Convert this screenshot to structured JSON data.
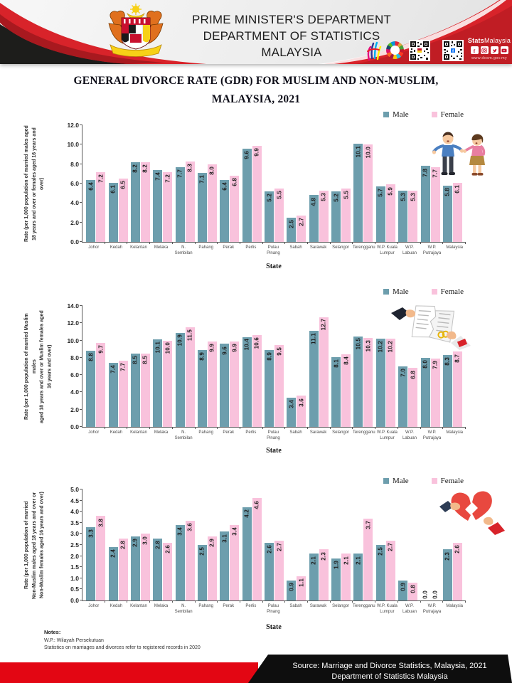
{
  "header": {
    "dept_line1": "PRIME MINISTER'S DEPARTMENT",
    "dept_line2": "DEPARTMENT OF STATISTICS MALAYSIA",
    "brand": {
      "bold": "Stats",
      "light": "Malaysia",
      "website": "www.dosm.gov.my"
    },
    "social_icons": [
      "facebook-icon",
      "instagram-icon",
      "twitter-icon",
      "youtube-icon"
    ],
    "logo_icons": [
      "malaysia-coat-of-arms",
      "dosm-hand-logo",
      "sdg-wheel-logo",
      "qr-code-dosm",
      "qr-code-facebook"
    ]
  },
  "title": {
    "line1": "GENERAL DIVORCE RATE (GDR) FOR MUSLIM AND NON-MUSLIM,",
    "line2": "MALAYSIA, 2021"
  },
  "legend": {
    "male": "Male",
    "female": "Female"
  },
  "colors": {
    "male_bar": "#6D9EAD",
    "female_bar": "#F9C2DC",
    "header_red": "#D8232A",
    "footer_red": "#E30613",
    "footer_black": "#0E0E0E"
  },
  "chart_data": [
    {
      "type": "bar",
      "title": "GDR total population",
      "xlabel": "State",
      "ylabel": "Rate (per 1,000 population of married males aged\n18 years and over or females aged 16 years and over)",
      "ylim": [
        0,
        12
      ],
      "ystep": 2,
      "grid": false,
      "legend_position": "top-right",
      "categories": [
        "Johor",
        "Kedah",
        "Kelantan",
        "Melaka",
        "N. Sembilan",
        "Pahang",
        "Perak",
        "Perlis",
        "Pulau Pinang",
        "Sabah",
        "Sarawak",
        "Selangor",
        "Terengganu",
        "W.P. Kuala Lumpur",
        "W.P. Labuan",
        "W.P. Putrajaya",
        "Malaysia"
      ],
      "series": [
        {
          "name": "Male",
          "values": [
            6.4,
            6.1,
            8.2,
            7.4,
            7.7,
            7.1,
            6.4,
            9.6,
            5.2,
            2.5,
            4.8,
            5.2,
            10.1,
            5.7,
            5.3,
            7.8,
            5.8
          ]
        },
        {
          "name": "Female",
          "values": [
            7.2,
            6.5,
            8.2,
            7.2,
            8.3,
            8.0,
            6.8,
            9.9,
            5.5,
            2.7,
            5.3,
            5.5,
            10.0,
            5.9,
            5.3,
            7.7,
            6.1
          ]
        }
      ]
    },
    {
      "type": "bar",
      "title": "GDR Muslim",
      "xlabel": "State",
      "ylabel": "Rate (per 1,000 population of married Muslim males\naged 18 years and over or Muslim females aged\n16 years and over)",
      "ylim": [
        0,
        14
      ],
      "ystep": 2,
      "grid": false,
      "legend_position": "top-right",
      "categories": [
        "Johor",
        "Kedah",
        "Kelantan",
        "Melaka",
        "N. Sembilan",
        "Pahang",
        "Perak",
        "Perlis",
        "Pulau Pinang",
        "Sabah",
        "Sarawak",
        "Selangor",
        "Terengganu",
        "W.P. Kuala Lumpur",
        "W.P. Labuan",
        "W.P. Putrajaya",
        "Malaysia"
      ],
      "series": [
        {
          "name": "Male",
          "values": [
            8.8,
            7.4,
            8.5,
            10.1,
            10.9,
            8.9,
            9.6,
            10.4,
            8.9,
            3.4,
            11.1,
            8.1,
            10.5,
            10.2,
            7.0,
            8.0,
            8.3
          ]
        },
        {
          "name": "Female",
          "values": [
            9.7,
            7.7,
            8.5,
            10.0,
            11.5,
            9.9,
            9.9,
            10.6,
            9.5,
            3.6,
            12.7,
            8.4,
            10.3,
            10.2,
            6.8,
            7.9,
            8.7
          ]
        }
      ]
    },
    {
      "type": "bar",
      "title": "GDR Non-Muslim",
      "xlabel": "State",
      "ylabel": "Rate (per 1,000 population of married\nNon-Muslim males aged 18 years and over or\nNon-Muslim females aged 16 years and over)",
      "ylim": [
        0,
        5
      ],
      "ystep": 0.5,
      "grid": false,
      "legend_position": "top-right",
      "categories": [
        "Johor",
        "Kedah",
        "Kelantan",
        "Melaka",
        "N. Sembilan",
        "Pahang",
        "Perak",
        "Perlis",
        "Pulau Pinang",
        "Sabah",
        "Sarawak",
        "Selangor",
        "Terengganu",
        "W.P. Kuala Lumpur",
        "W.P. Labuan",
        "W.P. Putrajaya",
        "Malaysia"
      ],
      "series": [
        {
          "name": "Male",
          "values": [
            3.3,
            2.4,
            2.9,
            2.8,
            3.4,
            2.5,
            3.1,
            4.2,
            2.6,
            0.9,
            2.1,
            1.9,
            2.1,
            2.5,
            0.9,
            0.0,
            2.3
          ]
        },
        {
          "name": "Female",
          "values": [
            3.8,
            2.8,
            3.0,
            2.6,
            3.6,
            2.9,
            3.4,
            4.6,
            2.7,
            1.1,
            2.3,
            2.1,
            3.7,
            2.7,
            0.8,
            0.0,
            2.6
          ]
        }
      ]
    }
  ],
  "notes": {
    "heading": "Notes:",
    "line1": "W.P.:  Wilayah Persekutuan",
    "line2": "Statistics  on  marriages and divorces refer  to  registered records in 2020"
  },
  "footer": {
    "line1": "Source: Marriage and Divorce Statistics, Malaysia, 2021",
    "line2": "Department of Statistics Malaysia"
  }
}
